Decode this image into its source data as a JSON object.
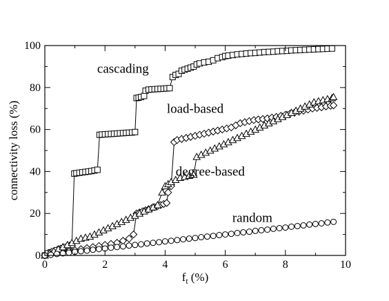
{
  "chart_data": {
    "type": "line",
    "title": "",
    "xlabel": "f",
    "xlabel_sub": "t",
    "xlabel_unit": "(%)",
    "ylabel": "connectivity loss (%)",
    "xlim": [
      0,
      10
    ],
    "ylim": [
      0,
      100
    ],
    "xticks": [
      0,
      2,
      4,
      6,
      8,
      10
    ],
    "yticks": [
      0,
      20,
      40,
      60,
      80,
      100
    ],
    "grid": false,
    "legend": "none",
    "series": [
      {
        "name": "cascading",
        "marker": "square",
        "x": [
          0,
          0.1,
          0.2,
          0.3,
          0.4,
          0.5,
          0.6,
          0.7,
          0.8,
          0.9,
          0.98,
          1.05,
          1.15,
          1.25,
          1.35,
          1.45,
          1.55,
          1.65,
          1.75,
          1.82,
          1.9,
          2.0,
          2.1,
          2.2,
          2.3,
          2.4,
          2.5,
          2.6,
          2.7,
          2.8,
          2.9,
          3.0,
          3.05,
          3.12,
          3.2,
          3.3,
          3.35,
          3.45,
          3.55,
          3.65,
          3.75,
          3.85,
          3.95,
          4.05,
          4.15,
          4.25,
          4.35,
          4.45,
          4.55,
          4.65,
          4.75,
          4.85,
          4.95,
          5.05,
          5.15,
          5.3,
          5.45,
          5.6,
          5.75,
          5.9,
          6.0,
          6.1,
          6.25,
          6.4,
          6.55,
          6.7,
          6.85,
          7.0,
          7.15,
          7.3,
          7.45,
          7.6,
          7.75,
          7.9,
          8.05,
          8.2,
          8.35,
          8.5,
          8.65,
          8.8,
          8.95,
          9.1,
          9.25,
          9.4,
          9.55
        ],
        "y": [
          0,
          1,
          1.5,
          2,
          2.5,
          3,
          3.5,
          4,
          4.5,
          5,
          39,
          39.2,
          39.4,
          39.6,
          39.8,
          40,
          40.2,
          40.5,
          40.8,
          57.5,
          57.6,
          57.7,
          57.8,
          57.9,
          58,
          58.1,
          58.2,
          58.3,
          58.4,
          58.5,
          58.6,
          58.8,
          75,
          75.2,
          75.5,
          76,
          78.5,
          79,
          79.1,
          79.2,
          79.3,
          79.4,
          79.5,
          79.6,
          79.7,
          85,
          86,
          86.5,
          88,
          88.5,
          89,
          89.5,
          90,
          91,
          91.5,
          92,
          92.3,
          93,
          94,
          94.5,
          95,
          95.2,
          95.5,
          95.8,
          96,
          96.2,
          96.4,
          96.5,
          96.7,
          96.9,
          97,
          97.1,
          97.3,
          97.4,
          97.5,
          97.7,
          97.8,
          97.9,
          98,
          98.1,
          98.2,
          98.3,
          98.4,
          98.5,
          98.6
        ]
      },
      {
        "name": "load-based",
        "marker": "diamond",
        "x": [
          0,
          0.2,
          0.4,
          0.6,
          0.8,
          1.0,
          1.2,
          1.4,
          1.6,
          1.8,
          2.0,
          2.2,
          2.4,
          2.6,
          2.8,
          2.95,
          3.05,
          3.15,
          3.25,
          3.35,
          3.45,
          3.55,
          3.65,
          3.75,
          3.85,
          3.95,
          4.05,
          4.1,
          4.2,
          4.3,
          4.4,
          4.55,
          4.7,
          4.85,
          5.0,
          5.15,
          5.3,
          5.45,
          5.6,
          5.75,
          5.9,
          6.05,
          6.2,
          6.35,
          6.5,
          6.65,
          6.8,
          6.95,
          7.1,
          7.25,
          7.4,
          7.55,
          7.7,
          7.85,
          8.0,
          8.15,
          8.3,
          8.45,
          8.6,
          8.75,
          8.9,
          9.05,
          9.2,
          9.35,
          9.5,
          9.6
        ],
        "y": [
          0,
          0.5,
          1,
          1.5,
          2,
          2.5,
          3,
          3.5,
          4,
          4.5,
          5,
          5.5,
          6,
          7,
          8,
          10,
          20,
          20.5,
          21,
          21.5,
          22,
          22.5,
          23,
          23.5,
          24,
          24.5,
          25,
          30,
          33,
          54,
          55,
          55.5,
          56,
          56.5,
          57,
          57.5,
          58,
          58.5,
          59,
          59.5,
          60,
          60.5,
          61,
          62,
          63,
          63.5,
          64,
          64.5,
          64.8,
          65,
          65.3,
          65.7,
          66,
          66.5,
          67,
          67.5,
          68,
          68.5,
          69,
          69.5,
          70,
          70.3,
          70.6,
          71,
          71.3,
          71.5
        ]
      },
      {
        "name": "degree-based",
        "marker": "triangle",
        "x": [
          0,
          0.15,
          0.3,
          0.45,
          0.6,
          0.75,
          0.9,
          1.05,
          1.2,
          1.35,
          1.5,
          1.65,
          1.8,
          1.95,
          2.1,
          2.25,
          2.4,
          2.55,
          2.7,
          2.85,
          3.0,
          3.15,
          3.3,
          3.45,
          3.6,
          3.75,
          3.9,
          4.0,
          4.1,
          4.2,
          4.35,
          4.5,
          4.65,
          4.8,
          4.95,
          5.05,
          5.2,
          5.35,
          5.5,
          5.65,
          5.8,
          5.95,
          6.1,
          6.25,
          6.4,
          6.55,
          6.7,
          6.85,
          7.0,
          7.15,
          7.3,
          7.45,
          7.6,
          7.75,
          7.9,
          8.05,
          8.2,
          8.35,
          8.5,
          8.65,
          8.8,
          8.95,
          9.1,
          9.25,
          9.4,
          9.55,
          9.6
        ],
        "y": [
          0,
          1,
          2,
          3,
          4,
          5,
          6,
          7,
          8,
          8.5,
          9,
          10,
          11,
          12,
          13,
          14,
          15,
          16,
          17,
          18,
          19,
          20,
          21,
          22,
          23,
          24,
          30,
          33,
          34,
          35,
          36,
          37,
          37.5,
          38,
          38.5,
          47,
          48,
          49,
          50,
          51,
          52,
          53,
          54,
          55,
          56,
          57,
          58,
          59,
          60,
          61,
          62,
          63,
          64,
          65,
          66,
          67,
          68,
          69,
          70,
          71,
          72,
          73,
          73.5,
          74,
          74.5,
          75,
          75.5
        ]
      },
      {
        "name": "random",
        "marker": "circle",
        "x": [
          0,
          0.2,
          0.4,
          0.6,
          0.8,
          1.0,
          1.2,
          1.4,
          1.6,
          1.8,
          2.0,
          2.2,
          2.4,
          2.6,
          2.8,
          3.0,
          3.2,
          3.4,
          3.6,
          3.8,
          4.0,
          4.2,
          4.4,
          4.6,
          4.8,
          5.0,
          5.2,
          5.4,
          5.6,
          5.8,
          6.0,
          6.2,
          6.4,
          6.6,
          6.8,
          7.0,
          7.2,
          7.4,
          7.6,
          7.8,
          8.0,
          8.2,
          8.4,
          8.6,
          8.8,
          9.0,
          9.2,
          9.4,
          9.6
        ],
        "y": [
          0,
          0.3,
          0.7,
          1.0,
          1.3,
          1.7,
          2.0,
          2.3,
          2.7,
          3.0,
          3.3,
          3.7,
          4.0,
          4.3,
          4.7,
          5.0,
          5.3,
          5.7,
          6.0,
          6.3,
          6.7,
          7.0,
          7.3,
          7.7,
          8.0,
          8.3,
          8.7,
          9.0,
          9.3,
          9.7,
          10.0,
          10.3,
          10.7,
          11.0,
          11.3,
          11.7,
          12.0,
          12.3,
          12.7,
          13.0,
          13.3,
          13.7,
          14.0,
          14.3,
          14.7,
          15.0,
          15.3,
          15.7,
          16.0
        ]
      }
    ],
    "annotations": [
      {
        "text": "cascading",
        "x": 2.6,
        "y": 87
      },
      {
        "text": "load-based",
        "x": 5.0,
        "y": 68
      },
      {
        "text": "degree-based",
        "x": 5.5,
        "y": 38
      },
      {
        "text": "random",
        "x": 6.9,
        "y": 16
      }
    ]
  }
}
